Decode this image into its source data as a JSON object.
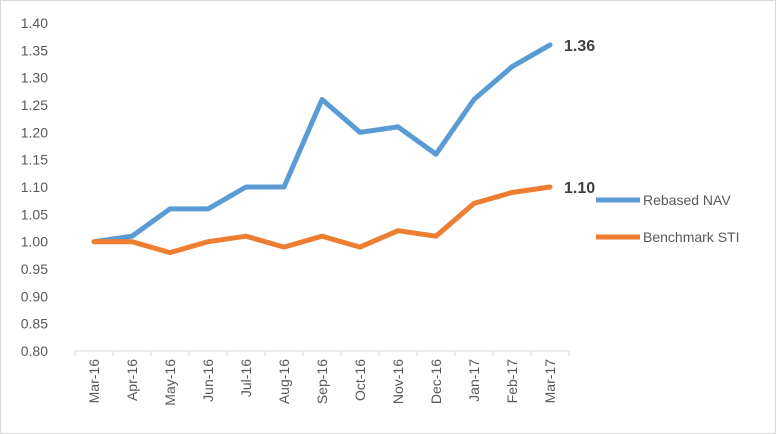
{
  "chart_data": {
    "type": "line",
    "title": "",
    "xlabel": "",
    "ylabel": "",
    "categories": [
      "Mar-16",
      "Apr-16",
      "May-16",
      "Jun-16",
      "Jul-16",
      "Aug-16",
      "Sep-16",
      "Oct-16",
      "Nov-16",
      "Dec-16",
      "Jan-17",
      "Feb-17",
      "Mar-17"
    ],
    "ylim": [
      0.8,
      1.4
    ],
    "yticks": [
      "0.80",
      "0.85",
      "0.90",
      "0.95",
      "1.00",
      "1.05",
      "1.10",
      "1.15",
      "1.20",
      "1.25",
      "1.30",
      "1.35",
      "1.40"
    ],
    "grid": false,
    "legend_position": "right",
    "series": [
      {
        "name": "Rebased NAV",
        "color": "#5b9bd5",
        "values": [
          1.0,
          1.01,
          1.06,
          1.06,
          1.1,
          1.1,
          1.26,
          1.2,
          1.21,
          1.16,
          1.26,
          1.32,
          1.36
        ],
        "end_label": "1.36"
      },
      {
        "name": "Benchmark STI",
        "color": "#ed7d31",
        "values": [
          1.0,
          1.0,
          0.98,
          1.0,
          1.01,
          0.99,
          1.01,
          0.99,
          1.02,
          1.01,
          1.07,
          1.09,
          1.1
        ],
        "end_label": "1.10"
      }
    ]
  }
}
